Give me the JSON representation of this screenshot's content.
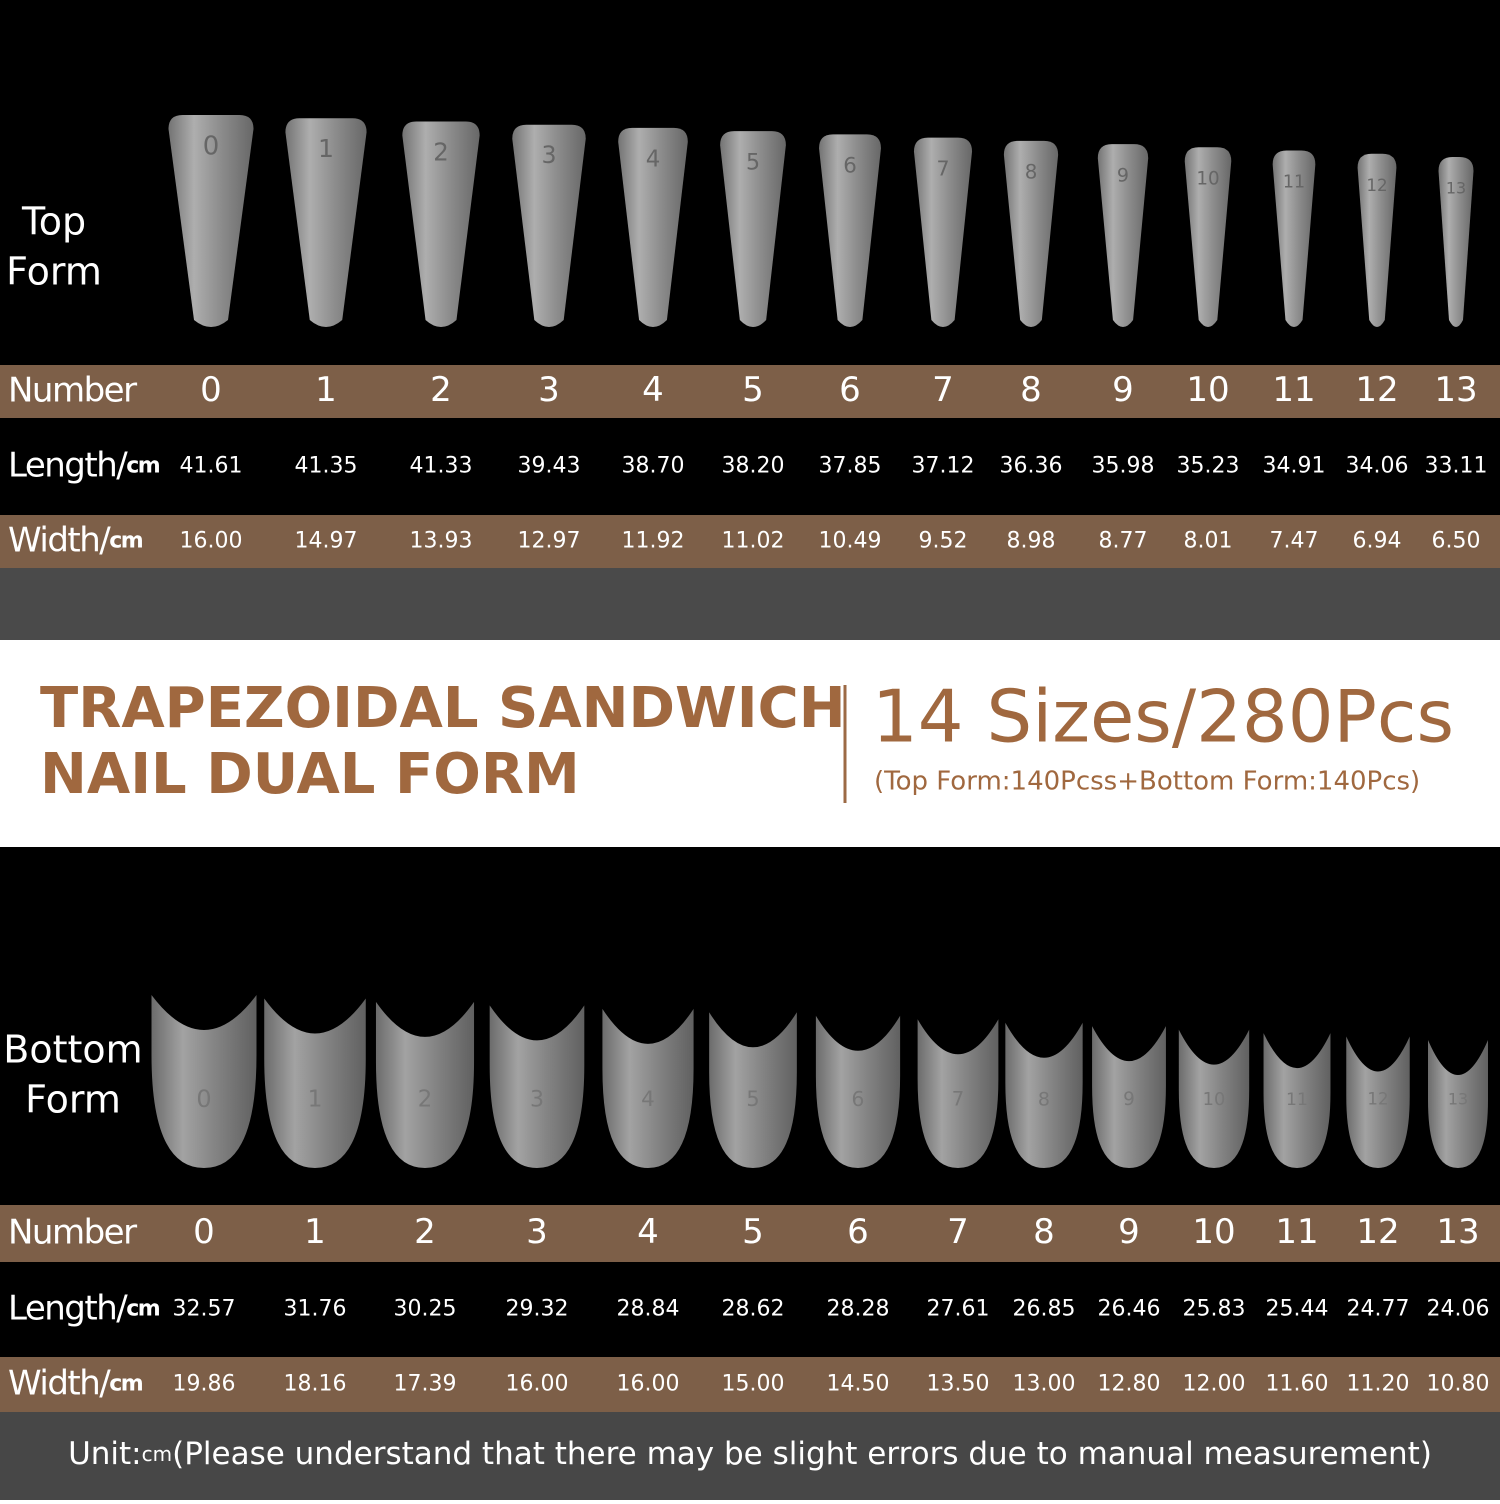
{
  "top_form": {
    "label": [
      "Top",
      "Form"
    ],
    "table": {
      "number": {
        "label": "Number",
        "cells": [
          "0",
          "1",
          "2",
          "3",
          "4",
          "5",
          "6",
          "7",
          "8",
          "9",
          "10",
          "11",
          "12",
          "13"
        ]
      },
      "length": {
        "label": "Length/",
        "unit": "cm",
        "cells": [
          "41.61",
          "41.35",
          "41.33",
          "39.43",
          "38.70",
          "38.20",
          "37.85",
          "37.12",
          "36.36",
          "35.98",
          "35.23",
          "34.91",
          "34.06",
          "33.11"
        ]
      },
      "width": {
        "label": "Width/",
        "unit": "cm",
        "cells": [
          "16.00",
          "14.97",
          "13.93",
          "12.97",
          "11.92",
          "11.02",
          "10.49",
          "9.52",
          "8.98",
          "8.77",
          "8.01",
          "7.47",
          "6.94",
          "6.50"
        ]
      }
    }
  },
  "banner": {
    "title": [
      "TRAPEZOIDAL SANDWICH",
      "NAIL DUAL FORM"
    ],
    "headline": "14 Sizes/280Pcs",
    "subtitle": "(Top Form:140Pcss+Bottom Form:140Pcs)"
  },
  "bottom_form": {
    "label": [
      "Bottom",
      "Form"
    ],
    "table": {
      "number": {
        "label": "Number",
        "cells": [
          "0",
          "1",
          "2",
          "3",
          "4",
          "5",
          "6",
          "7",
          "8",
          "9",
          "10",
          "11",
          "12",
          "13"
        ]
      },
      "length": {
        "label": "Length/",
        "unit": "cm",
        "cells": [
          "32.57",
          "31.76",
          "30.25",
          "29.32",
          "28.84",
          "28.62",
          "28.28",
          "27.61",
          "26.85",
          "26.46",
          "25.83",
          "25.44",
          "24.77",
          "24.06"
        ]
      },
      "width": {
        "label": "Width/",
        "unit": "cm",
        "cells": [
          "19.86",
          "18.16",
          "17.39",
          "16.00",
          "16.00",
          "15.00",
          "14.50",
          "13.50",
          "13.00",
          "12.80",
          "12.00",
          "11.60",
          "11.20",
          "10.80"
        ]
      }
    }
  },
  "footer": {
    "prefix": "Unit:",
    "unit": "cm",
    "note": "(Please understand that there may be slight errors due to manual measurement)"
  }
}
